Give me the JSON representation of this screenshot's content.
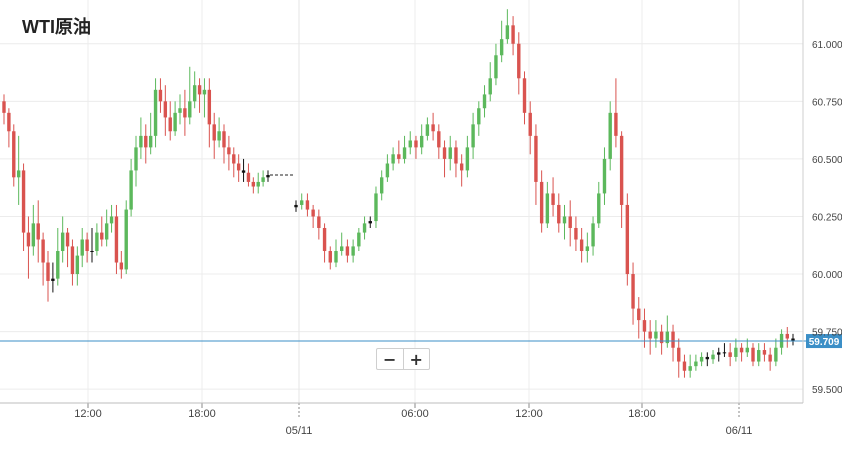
{
  "chart_data": {
    "type": "candlestick",
    "title": "WTI原油",
    "current_price": "59.709",
    "ylim": [
      59.44,
      61.19
    ],
    "y_ticks": [
      "59.500",
      "59.750",
      "60.000",
      "60.250",
      "60.500",
      "60.750",
      "61.000"
    ],
    "x_ticks": [
      "12:00",
      "18:00",
      "06:00",
      "12:00",
      "18:00"
    ],
    "date_ticks": [
      "05/11",
      "06/11"
    ],
    "colors": {
      "up": "#5cb85c",
      "down": "#d9534f",
      "neutral": "#111111",
      "price_line": "#3b8fc7",
      "grid": "#ececec"
    },
    "candles": [
      [
        60.75,
        60.7,
        60.78,
        60.65
      ],
      [
        60.7,
        60.62,
        60.72,
        60.55
      ],
      [
        60.62,
        60.42,
        60.65,
        60.38
      ],
      [
        60.42,
        60.45,
        60.6,
        60.3
      ],
      [
        60.45,
        60.18,
        60.48,
        60.1
      ],
      [
        60.18,
        60.12,
        60.25,
        59.98
      ],
      [
        60.12,
        60.22,
        60.3,
        60.08
      ],
      [
        60.22,
        60.15,
        60.32,
        60.05
      ],
      [
        60.15,
        60.05,
        60.18,
        59.95
      ],
      [
        60.05,
        59.97,
        60.1,
        59.88
      ],
      [
        59.97,
        59.98,
        60.05,
        59.92
      ],
      [
        59.98,
        60.1,
        60.2,
        59.95
      ],
      [
        60.1,
        60.18,
        60.25,
        60.05
      ],
      [
        60.18,
        60.12,
        60.2,
        60.03
      ],
      [
        60.12,
        60.0,
        60.15,
        59.95
      ],
      [
        60.0,
        60.08,
        60.12,
        59.95
      ],
      [
        60.08,
        60.15,
        60.2,
        60.03
      ],
      [
        60.15,
        60.1,
        60.18,
        60.05
      ],
      [
        60.1,
        60.1,
        60.2,
        60.05
      ],
      [
        60.1,
        60.18,
        60.22,
        60.08
      ],
      [
        60.18,
        60.15,
        60.25,
        60.12
      ],
      [
        60.15,
        60.22,
        60.28,
        60.12
      ],
      [
        60.22,
        60.25,
        60.3,
        60.18
      ],
      [
        60.25,
        60.05,
        60.3,
        60.0
      ],
      [
        60.05,
        60.02,
        60.1,
        59.98
      ],
      [
        60.02,
        60.28,
        60.32,
        60.0
      ],
      [
        60.28,
        60.45,
        60.5,
        60.25
      ],
      [
        60.45,
        60.55,
        60.6,
        60.38
      ],
      [
        60.55,
        60.6,
        60.68,
        60.5
      ],
      [
        60.6,
        60.55,
        60.65,
        60.48
      ],
      [
        60.55,
        60.6,
        60.7,
        60.52
      ],
      [
        60.6,
        60.8,
        60.85,
        60.55
      ],
      [
        60.8,
        60.75,
        60.85,
        60.7
      ],
      [
        60.75,
        60.68,
        60.82,
        60.6
      ],
      [
        60.68,
        60.62,
        60.75,
        60.58
      ],
      [
        60.62,
        60.7,
        60.75,
        60.6
      ],
      [
        60.7,
        60.72,
        60.78,
        60.65
      ],
      [
        60.72,
        60.68,
        60.8,
        60.6
      ],
      [
        60.68,
        60.75,
        60.9,
        60.65
      ],
      [
        60.75,
        60.82,
        60.88,
        60.72
      ],
      [
        60.82,
        60.78,
        60.85,
        60.7
      ],
      [
        60.78,
        60.8,
        60.85,
        60.68
      ],
      [
        60.8,
        60.65,
        60.85,
        60.55
      ],
      [
        60.65,
        60.58,
        60.7,
        60.5
      ],
      [
        60.58,
        60.62,
        60.68,
        60.55
      ],
      [
        60.62,
        60.55,
        60.65,
        60.48
      ],
      [
        60.55,
        60.52,
        60.6,
        60.45
      ],
      [
        60.52,
        60.48,
        60.55,
        60.42
      ],
      [
        60.48,
        60.45,
        60.52,
        60.4
      ],
      [
        60.45,
        60.44,
        60.5,
        60.4
      ],
      [
        60.44,
        60.4,
        60.48,
        60.38
      ],
      [
        60.4,
        60.38,
        60.42,
        60.35
      ],
      [
        60.38,
        60.4,
        60.44,
        60.35
      ],
      [
        60.4,
        60.42,
        60.45,
        60.38
      ],
      [
        60.42,
        60.43,
        60.45,
        60.4
      ],
      [
        60.29,
        60.3,
        60.32,
        60.27
      ],
      [
        60.3,
        60.32,
        60.35,
        60.28
      ],
      [
        60.32,
        60.28,
        60.35,
        60.25
      ],
      [
        60.28,
        60.25,
        60.3,
        60.2
      ],
      [
        60.25,
        60.2,
        60.28,
        60.15
      ],
      [
        60.2,
        60.1,
        60.22,
        60.05
      ],
      [
        60.1,
        60.05,
        60.12,
        60.02
      ],
      [
        60.05,
        60.1,
        60.15,
        60.03
      ],
      [
        60.1,
        60.12,
        60.18,
        60.08
      ],
      [
        60.12,
        60.08,
        60.15,
        60.05
      ],
      [
        60.08,
        60.12,
        60.15,
        60.05
      ],
      [
        60.12,
        60.18,
        60.2,
        60.1
      ],
      [
        60.18,
        60.22,
        60.25,
        60.15
      ],
      [
        60.22,
        60.23,
        60.25,
        60.2
      ],
      [
        60.23,
        60.35,
        60.38,
        60.2
      ],
      [
        60.35,
        60.42,
        60.45,
        60.32
      ],
      [
        60.42,
        60.48,
        60.52,
        60.4
      ],
      [
        60.48,
        60.52,
        60.55,
        60.45
      ],
      [
        60.52,
        60.5,
        60.58,
        60.48
      ],
      [
        60.5,
        60.55,
        60.6,
        60.48
      ],
      [
        60.55,
        60.58,
        60.62,
        60.52
      ],
      [
        60.58,
        60.55,
        60.6,
        60.5
      ],
      [
        60.55,
        60.6,
        60.65,
        60.52
      ],
      [
        60.6,
        60.65,
        60.68,
        60.58
      ],
      [
        60.65,
        60.62,
        60.7,
        60.58
      ],
      [
        60.62,
        60.55,
        60.65,
        60.5
      ],
      [
        60.55,
        60.5,
        60.58,
        60.42
      ],
      [
        60.5,
        60.55,
        60.6,
        60.45
      ],
      [
        60.55,
        60.48,
        60.58,
        60.42
      ],
      [
        60.48,
        60.45,
        60.52,
        60.38
      ],
      [
        60.45,
        60.55,
        60.6,
        60.42
      ],
      [
        60.55,
        60.65,
        60.7,
        60.5
      ],
      [
        60.65,
        60.72,
        60.75,
        60.6
      ],
      [
        60.72,
        60.78,
        60.82,
        60.68
      ],
      [
        60.78,
        60.85,
        60.92,
        60.75
      ],
      [
        60.85,
        60.95,
        61.0,
        60.82
      ],
      [
        60.95,
        61.02,
        61.1,
        60.92
      ],
      [
        61.02,
        61.08,
        61.15,
        61.0
      ],
      [
        61.08,
        61.0,
        61.12,
        60.95
      ],
      [
        61.0,
        60.85,
        61.05,
        60.78
      ],
      [
        60.85,
        60.7,
        60.88,
        60.65
      ],
      [
        60.7,
        60.6,
        60.75,
        60.52
      ],
      [
        60.6,
        60.4,
        60.65,
        60.3
      ],
      [
        60.4,
        60.22,
        60.45,
        60.18
      ],
      [
        60.22,
        60.35,
        60.4,
        60.2
      ],
      [
        60.35,
        60.3,
        60.42,
        60.25
      ],
      [
        60.3,
        60.22,
        60.35,
        60.18
      ],
      [
        60.22,
        60.25,
        60.3,
        60.15
      ],
      [
        60.25,
        60.2,
        60.32,
        60.12
      ],
      [
        60.2,
        60.15,
        60.25,
        60.1
      ],
      [
        60.15,
        60.1,
        60.2,
        60.05
      ],
      [
        60.1,
        60.12,
        60.18,
        60.05
      ],
      [
        60.12,
        60.22,
        60.25,
        60.08
      ],
      [
        60.22,
        60.35,
        60.4,
        60.2
      ],
      [
        60.35,
        60.5,
        60.55,
        60.3
      ],
      [
        60.5,
        60.7,
        60.75,
        60.45
      ],
      [
        60.7,
        60.6,
        60.85,
        60.55
      ],
      [
        60.6,
        60.3,
        60.62,
        60.2
      ],
      [
        60.3,
        60.0,
        60.35,
        59.95
      ],
      [
        60.0,
        59.85,
        60.05,
        59.78
      ],
      [
        59.85,
        59.8,
        59.9,
        59.72
      ],
      [
        59.8,
        59.75,
        59.85,
        59.68
      ],
      [
        59.75,
        59.72,
        59.8,
        59.65
      ],
      [
        59.72,
        59.75,
        59.8,
        59.68
      ],
      [
        59.75,
        59.7,
        59.78,
        59.65
      ],
      [
        59.7,
        59.75,
        59.82,
        59.68
      ],
      [
        59.75,
        59.68,
        59.78,
        59.62
      ],
      [
        59.68,
        59.62,
        59.72,
        59.55
      ],
      [
        59.62,
        59.58,
        59.65,
        59.55
      ],
      [
        59.58,
        59.6,
        59.65,
        59.55
      ],
      [
        59.6,
        59.62,
        59.65,
        59.58
      ],
      [
        59.62,
        59.64,
        59.66,
        59.6
      ],
      [
        59.64,
        59.63,
        59.66,
        59.6
      ],
      [
        59.63,
        59.65,
        59.67,
        59.61
      ],
      [
        59.65,
        59.66,
        59.68,
        59.62
      ],
      [
        59.66,
        59.66,
        59.7,
        59.64
      ],
      [
        59.66,
        59.64,
        59.7,
        59.6
      ],
      [
        59.64,
        59.68,
        59.72,
        59.62
      ],
      [
        59.68,
        59.66,
        59.7,
        59.62
      ],
      [
        59.66,
        59.68,
        59.72,
        59.64
      ],
      [
        59.68,
        59.62,
        59.7,
        59.6
      ],
      [
        59.62,
        59.67,
        59.7,
        59.6
      ],
      [
        59.67,
        59.65,
        59.7,
        59.62
      ],
      [
        59.65,
        59.62,
        59.68,
        59.58
      ],
      [
        59.62,
        59.68,
        59.72,
        59.6
      ],
      [
        59.68,
        59.74,
        59.76,
        59.65
      ],
      [
        59.74,
        59.72,
        59.77,
        59.68
      ],
      [
        59.72,
        59.71,
        59.74,
        59.69
      ]
    ]
  }
}
